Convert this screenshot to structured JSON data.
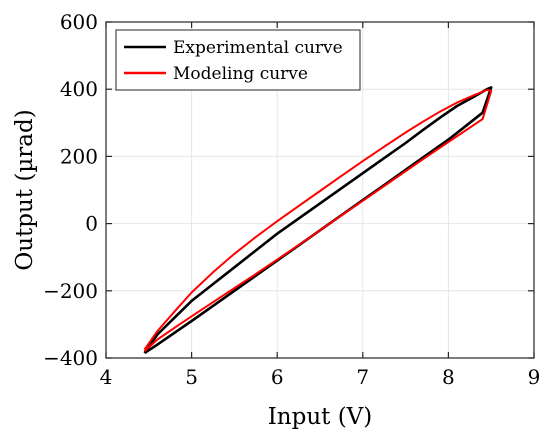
{
  "chart_data": {
    "type": "line",
    "xlabel": "Input (V)",
    "ylabel": "Output (µrad)",
    "xlim": [
      4,
      9
    ],
    "ylim": [
      -400,
      600
    ],
    "xticks": [
      4,
      5,
      6,
      7,
      8,
      9
    ],
    "yticks": [
      -400,
      -200,
      0,
      200,
      400,
      600
    ],
    "xtick_labels": [
      "4",
      "5",
      "6",
      "7",
      "8",
      "9"
    ],
    "ytick_labels": [
      "−400",
      "−200",
      "0",
      "200",
      "400",
      "600"
    ],
    "grid": true,
    "legend_position": "top-left",
    "series": [
      {
        "name": "Experimental curve",
        "color": "#000000",
        "x": [
          4.45,
          4.6,
          4.8,
          5.0,
          5.25,
          5.5,
          5.75,
          6.0,
          6.25,
          6.5,
          6.75,
          7.0,
          7.25,
          7.5,
          7.75,
          8.0,
          8.2,
          8.4,
          8.5,
          8.45,
          8.3,
          8.1,
          7.9,
          7.7,
          7.5,
          7.25,
          7.0,
          6.75,
          6.5,
          6.25,
          6.0,
          5.75,
          5.5,
          5.25,
          5.0,
          4.8,
          4.6,
          4.45
        ],
        "y": [
          -385,
          -360,
          -325,
          -290,
          -245,
          -200,
          -155,
          -110,
          -65,
          -20,
          25,
          70,
          115,
          160,
          205,
          250,
          290,
          330,
          405,
          400,
          378,
          350,
          315,
          278,
          240,
          195,
          150,
          105,
          60,
          15,
          -30,
          -80,
          -130,
          -180,
          -230,
          -280,
          -330,
          -385
        ]
      },
      {
        "name": "Modeling curve",
        "color": "#ff0000",
        "x": [
          4.45,
          4.6,
          4.8,
          5.0,
          5.25,
          5.5,
          5.75,
          6.0,
          6.25,
          6.5,
          6.75,
          7.0,
          7.25,
          7.5,
          7.75,
          8.0,
          8.2,
          8.4,
          8.5,
          8.45,
          8.3,
          8.1,
          7.9,
          7.7,
          7.5,
          7.25,
          7.0,
          6.75,
          6.5,
          6.25,
          6.0,
          5.75,
          5.5,
          5.25,
          5.0,
          4.8,
          4.6,
          4.45
        ],
        "y": [
          -380,
          -345,
          -310,
          -276,
          -234,
          -192,
          -150,
          -107,
          -64,
          -20,
          24,
          68,
          112,
          156,
          200,
          243,
          277,
          311,
          395,
          398,
          382,
          360,
          333,
          303,
          271,
          229,
          186,
          142,
          97,
          52,
          7,
          -40,
          -90,
          -145,
          -205,
          -262,
          -320,
          -375
        ]
      }
    ]
  }
}
